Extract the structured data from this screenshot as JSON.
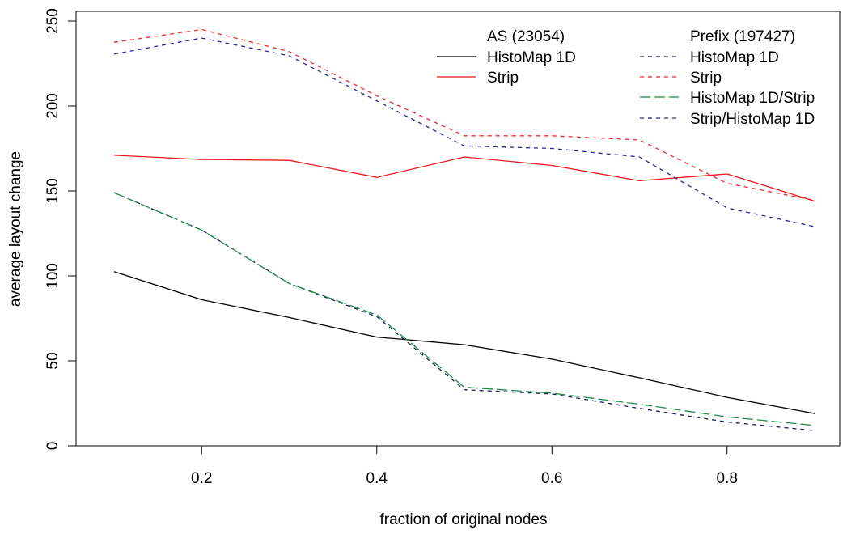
{
  "chart_data": {
    "type": "line",
    "xlabel": "fraction of original nodes",
    "ylabel": "average layout change",
    "xlim": [
      0.1,
      0.9
    ],
    "ylim": [
      0,
      250
    ],
    "x_ticks": [
      0.2,
      0.4,
      0.6,
      0.8
    ],
    "x_tick_labels": [
      "0.2",
      "0.4",
      "0.6",
      "0.8"
    ],
    "y_ticks": [
      0,
      50,
      100,
      150,
      200,
      250
    ],
    "y_tick_labels": [
      "0",
      "50",
      "100",
      "150",
      "200",
      "250"
    ],
    "grid": false,
    "legend_position": "top-right",
    "legend_groups": [
      {
        "title": "AS (23054)",
        "entries": [
          "histomap-as",
          "strip-as"
        ]
      },
      {
        "title": "Prefix (197427)",
        "entries": [
          "histomap-prefix",
          "strip-prefix",
          "histomap-strip-prefix",
          "strip-histomap-prefix"
        ]
      }
    ],
    "x": [
      0.1,
      0.2,
      0.3,
      0.4,
      0.5,
      0.6,
      0.7,
      0.8,
      0.9
    ],
    "series": [
      {
        "id": "histomap-as",
        "name": "HistoMap 1D",
        "color": "#000000",
        "dash": "solid",
        "values": [
          102.5,
          86,
          75.5,
          64,
          59.5,
          51,
          40,
          28.5,
          19
        ]
      },
      {
        "id": "strip-as",
        "name": "Strip",
        "color": "#e8181e",
        "dash": "solid",
        "values": [
          171,
          168.5,
          168,
          158,
          170,
          165,
          156,
          160,
          144
        ]
      },
      {
        "id": "histomap-prefix",
        "name": "HistoMap 1D",
        "color": "#1a1a5e",
        "dash": "short",
        "values": [
          149,
          127,
          95.5,
          76,
          33,
          30.5,
          22,
          14,
          9
        ]
      },
      {
        "id": "strip-prefix",
        "name": "Strip",
        "color": "#f0282d",
        "dash": "short",
        "values": [
          237.5,
          245,
          232,
          206,
          182.5,
          182.5,
          180,
          154.5,
          144.5
        ]
      },
      {
        "id": "histomap-strip-prefix",
        "name": "HistoMap 1D/Strip",
        "color": "#1e8c46",
        "dash": "long",
        "values": [
          149,
          127,
          95.5,
          77,
          34.5,
          31,
          24.5,
          17,
          12
        ]
      },
      {
        "id": "strip-histomap-prefix",
        "name": "Strip/HistoMap 1D",
        "color": "#2828a0",
        "dash": "short",
        "values": [
          230.5,
          240,
          229.5,
          203,
          176.5,
          175,
          170,
          140,
          129
        ]
      }
    ]
  }
}
